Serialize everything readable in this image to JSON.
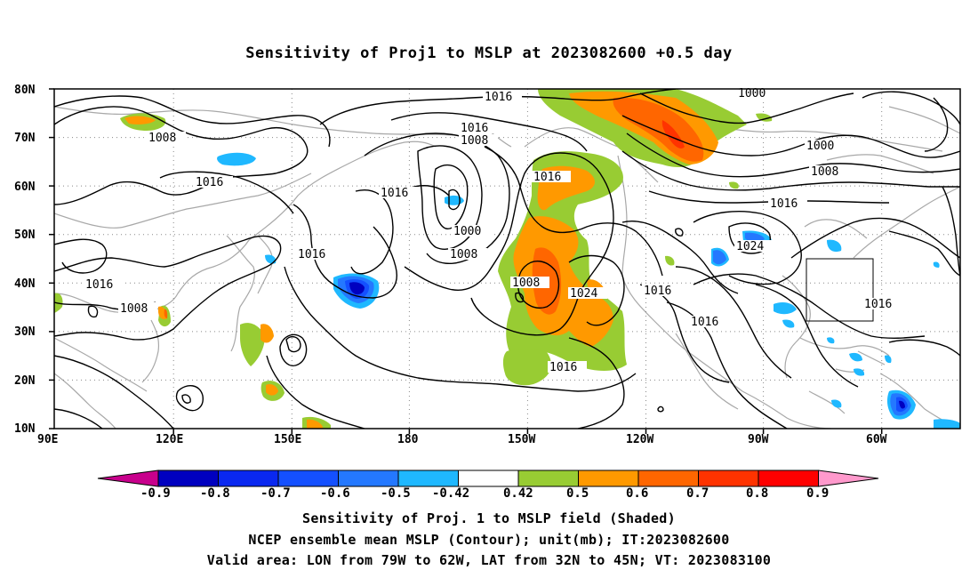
{
  "title": "Sensitivity of Proj1 to MSLP at 2023082600 +0.5 day",
  "map": {
    "lon_range": [
      "90E",
      "40W"
    ],
    "lat_range": [
      "10N",
      "80N"
    ],
    "lat_ticks": [
      "80N",
      "70N",
      "60N",
      "50N",
      "40N",
      "30N",
      "20N",
      "10N"
    ],
    "lon_ticks": [
      "90E",
      "120E",
      "150E",
      "180",
      "150W",
      "120W",
      "90W",
      "60W"
    ],
    "grid": "dotted",
    "coastline_color": "#a8a8a8",
    "contour_color": "#000000",
    "contour_labels": [
      "1016",
      "1000",
      "1016",
      "1008",
      "1008",
      "1016",
      "1016",
      "1000",
      "1008",
      "1016",
      "1016",
      "1000",
      "1008",
      "1024",
      "1016",
      "1016",
      "1008",
      "1008",
      "1024",
      "1016",
      "1016",
      "1016",
      "1016"
    ],
    "valid_area_box": "LON 79W to 62W, LAT 32N to 45N"
  },
  "colorbar": {
    "levels": [
      "-0.9",
      "-0.8",
      "-0.7",
      "-0.6",
      "-0.5",
      "-0.42",
      "0.42",
      "0.5",
      "0.6",
      "0.7",
      "0.8",
      "0.9"
    ],
    "colors": [
      "#c8008c",
      "#0000c0",
      "#0a28f0",
      "#1450ff",
      "#2478ff",
      "#1fb8ff",
      "#ffffff",
      "#98cc33",
      "#ff9900",
      "#ff6600",
      "#ff3300",
      "#ff0000",
      "#ff99cc"
    ]
  },
  "captions": [
    "Sensitivity of Proj. 1 to MSLP field (Shaded)",
    "NCEP ensemble mean MSLP (Contour); unit(mb); IT:2023082600",
    "Valid area: LON from 79W to 62W, LAT from 32N to 45N; VT: 2023083100"
  ]
}
